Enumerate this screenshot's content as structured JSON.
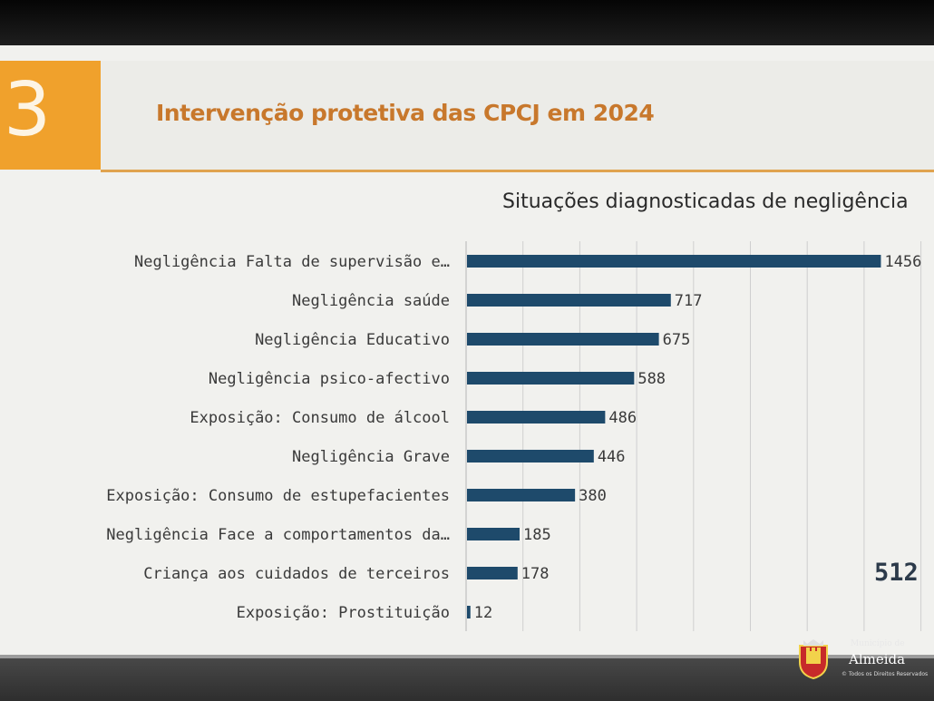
{
  "slide": {
    "number": "3",
    "header_title": "Intervenção protetiva das CPCJ em 2024",
    "big_total": "512"
  },
  "logo": {
    "small_text": "Município de",
    "name": "Almeida",
    "copyright": "© Todos os Direitos Reservados"
  },
  "colors": {
    "accent_orange": "#f0a12c",
    "header_text": "#c8782c",
    "bar": "#1e4a6b"
  },
  "chart_data": {
    "type": "bar",
    "orientation": "horizontal",
    "title": "Situações diagnosticadas de negligência",
    "categories": [
      "Negligência Falta de supervisão e…",
      "Negligência saúde",
      "Negligência Educativo",
      "Negligência psico-afectivo",
      "Exposição: Consumo de álcool",
      "Negligência Grave",
      "Exposição:  Consumo de estupefacientes",
      "Negligência Face a comportamentos da…",
      "Criança aos cuidados de terceiros",
      "Exposição: Prostituição"
    ],
    "values": [
      1456,
      717,
      675,
      588,
      486,
      446,
      380,
      185,
      178,
      12
    ],
    "data_labels": [
      "1456",
      "717",
      "675",
      "588",
      "486",
      "446",
      "380",
      "185",
      "178",
      "12"
    ],
    "xlim": [
      0,
      1600
    ],
    "grid": true
  }
}
